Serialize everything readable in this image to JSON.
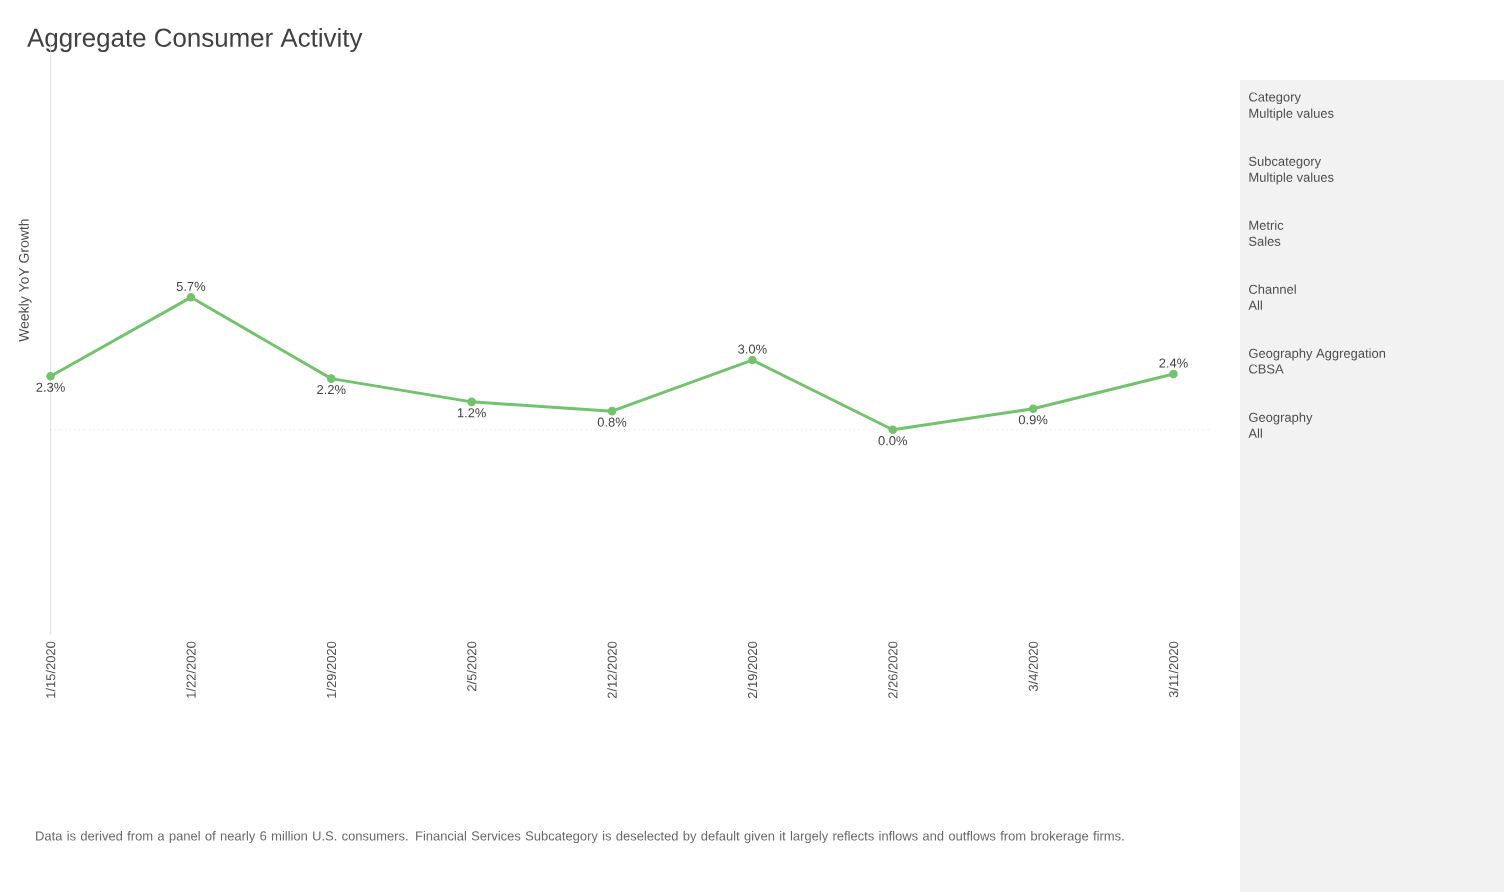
{
  "chart_data": {
    "type": "line",
    "title": "Aggregate Consumer Activity",
    "ylabel": "Weekly YoY Growth",
    "categories": [
      "1/15/2020",
      "1/22/2020",
      "1/29/2020",
      "2/5/2020",
      "2/12/2020",
      "2/19/2020",
      "2/26/2020",
      "3/4/2020",
      "3/11/2020"
    ],
    "series": [
      {
        "color": "#74c16e",
        "values": [
          2.3,
          5.7,
          2.2,
          1.2,
          0.8,
          3.0,
          0.0,
          0.9,
          2.4
        ],
        "value_labels": [
          "2.3%",
          "5.7%",
          "2.2%",
          "1.2%",
          "0.8%",
          "3.0%",
          "0.0%",
          "0.9%",
          "2.4%"
        ]
      }
    ],
    "ylim": [
      -8.8,
      16.6
    ],
    "marker": "circle",
    "line_style": "solid",
    "ref_lines": [
      {
        "axis": "y",
        "value": 0,
        "color": "#cccccc",
        "line_style": "dotted"
      }
    ],
    "annotations": [
      "Data is derived from a panel of nearly 6 million U.S. consumers. Financial Services Subcategory is deselected by default given it largely reflects inflows and outflows from brokerage firms.",
      "Category",
      "Multiple values",
      "Subcategory",
      "Multiple values",
      "Metric",
      "Sales",
      "Channel",
      "All",
      "Geography Aggregation",
      "CBSA",
      "Geography",
      "All"
    ]
  }
}
